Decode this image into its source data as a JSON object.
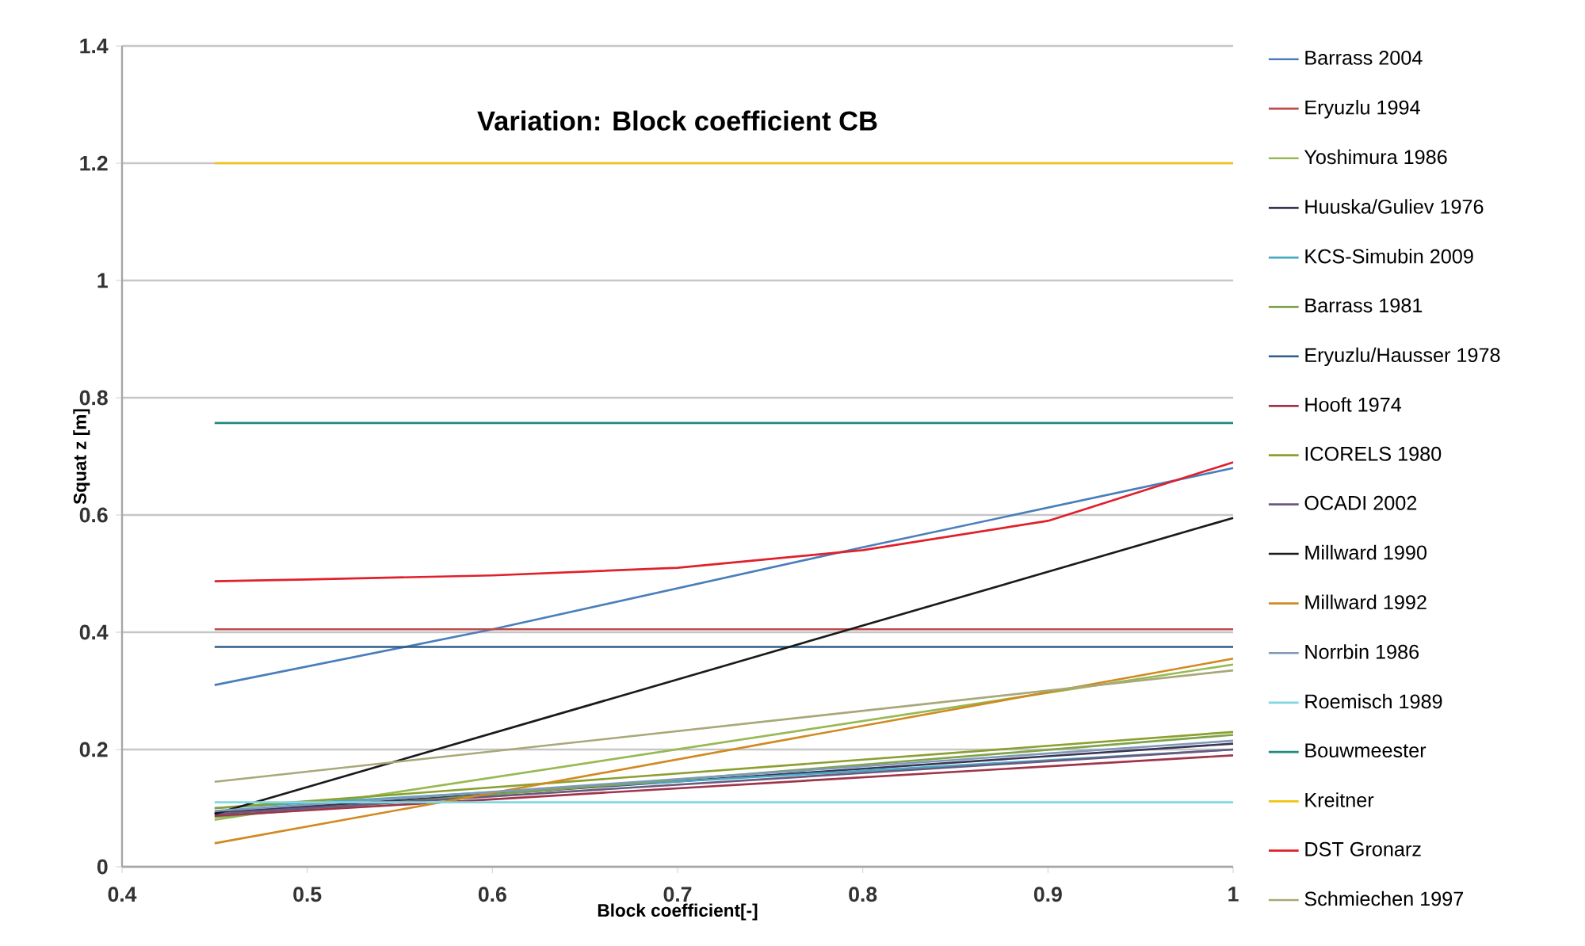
{
  "chart_data": {
    "type": "line",
    "title": "Variation: Block coefficient CB",
    "xlabel": "Block coefficient[-]",
    "ylabel": "Squat z [m]",
    "xlim": [
      0.4,
      1
    ],
    "ylim": [
      0,
      1.4
    ],
    "xticks": [
      0.4,
      0.5,
      0.6,
      0.7,
      0.8,
      0.9,
      1
    ],
    "yticks": [
      0,
      0.2,
      0.4,
      0.6,
      0.8,
      1,
      1.2,
      1.4
    ],
    "grid": "y",
    "legend": "right",
    "marker": "none",
    "line_style": "solid",
    "series": [
      {
        "name": "Barrass 2004",
        "color": "#4a7ebb",
        "x": [
          0.45,
          0.6,
          0.8,
          1
        ],
        "values": [
          0.31,
          0.405,
          0.545,
          0.68
        ]
      },
      {
        "name": "Eryuzlu 1994",
        "color": "#be4b48",
        "x": [
          0.45,
          1
        ],
        "values": [
          0.405,
          0.405
        ]
      },
      {
        "name": "Yoshimura 1986",
        "color": "#98b954",
        "x": [
          0.45,
          1
        ],
        "values": [
          0.08,
          0.345
        ]
      },
      {
        "name": "Huuska/Guliev 1976",
        "color": "#3b3556",
        "x": [
          0.45,
          1
        ],
        "values": [
          0.092,
          0.21
        ]
      },
      {
        "name": "KCS-Simubin 2009",
        "color": "#46aac5",
        "x": [
          0.45,
          1
        ],
        "values": [
          0.1,
          0.2
        ]
      },
      {
        "name": "Barrass 1981",
        "color": "#7fa34a",
        "x": [
          0.45,
          1
        ],
        "values": [
          0.085,
          0.225
        ]
      },
      {
        "name": "Eryuzlu/Hausser 1978",
        "color": "#2c5d8a",
        "x": [
          0.45,
          1
        ],
        "values": [
          0.375,
          0.375
        ]
      },
      {
        "name": "Hooft 1974",
        "color": "#a0354a",
        "x": [
          0.45,
          1
        ],
        "values": [
          0.087,
          0.19
        ]
      },
      {
        "name": "ICORELS 1980",
        "color": "#8aa030",
        "x": [
          0.45,
          1
        ],
        "values": [
          0.1,
          0.23
        ]
      },
      {
        "name": "OCADI 2002",
        "color": "#6a5a80",
        "x": [
          0.45,
          1
        ],
        "values": [
          0.09,
          0.2
        ]
      },
      {
        "name": "Millward 1990",
        "color": "#1a1a1a",
        "x": [
          0.45,
          1
        ],
        "values": [
          0.09,
          0.595
        ]
      },
      {
        "name": "Millward 1992",
        "color": "#d08a20",
        "x": [
          0.45,
          1
        ],
        "values": [
          0.04,
          0.355
        ]
      },
      {
        "name": "Norrbin 1986",
        "color": "#7f9ab8",
        "x": [
          0.45,
          1
        ],
        "values": [
          0.095,
          0.215
        ]
      },
      {
        "name": "Roemisch 1989",
        "color": "#7fd8e0",
        "x": [
          0.45,
          1
        ],
        "values": [
          0.11,
          0.11
        ]
      },
      {
        "name": "Bouwmeester",
        "color": "#1f8a80",
        "x": [
          0.45,
          1
        ],
        "values": [
          0.757,
          0.757
        ]
      },
      {
        "name": "Kreitner",
        "color": "#f2c314",
        "x": [
          0.45,
          1
        ],
        "values": [
          1.2,
          1.2
        ]
      },
      {
        "name": "DST Gronarz",
        "color": "#e0202a",
        "x": [
          0.45,
          0.5,
          0.6,
          0.7,
          0.8,
          0.9,
          1
        ],
        "values": [
          0.487,
          0.49,
          0.497,
          0.51,
          0.54,
          0.59,
          0.69
        ]
      },
      {
        "name": "Schmiechen 1997",
        "color": "#a8a878",
        "x": [
          0.45,
          1
        ],
        "values": [
          0.145,
          0.335
        ]
      }
    ]
  }
}
